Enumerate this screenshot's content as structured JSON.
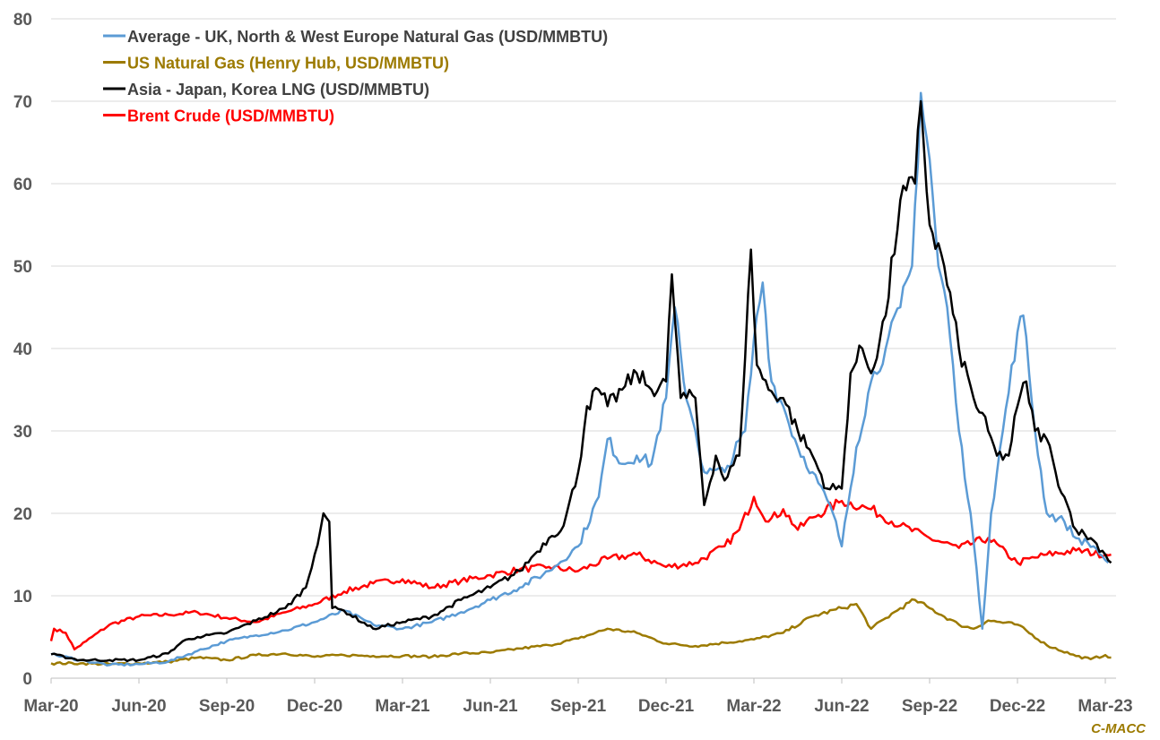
{
  "chart_data": {
    "type": "line",
    "title": "",
    "xlabel": "",
    "ylabel": "",
    "ylim": [
      0,
      80
    ],
    "yticks": [
      "0",
      "10",
      "20",
      "30",
      "40",
      "50",
      "60",
      "70",
      "80"
    ],
    "xtick_labels": [
      "Mar-20",
      "Jun-20",
      "Sep-20",
      "Dec-20",
      "Mar-21",
      "Jun-21",
      "Sep-21",
      "Dec-21",
      "Mar-22",
      "Jun-22",
      "Sep-22",
      "Dec-22",
      "Mar-23"
    ],
    "x_units": "months since Mar-20",
    "xlim": [
      0,
      36
    ],
    "grid": true,
    "legend_placement": "top-left",
    "source_label": "C-MACC",
    "series": [
      {
        "name": "Average - UK, North & West Europe Natural Gas (USD/MMBTU)",
        "color": "#5B9BD5",
        "legend_text_color": "#404040",
        "points": [
          [
            0,
            2.9
          ],
          [
            1,
            2.2
          ],
          [
            2,
            1.6
          ],
          [
            3,
            1.7
          ],
          [
            4,
            2.0
          ],
          [
            5,
            3.3
          ],
          [
            6,
            4.5
          ],
          [
            7,
            5.2
          ],
          [
            8,
            5.8
          ],
          [
            9,
            6.8
          ],
          [
            10,
            8.2
          ],
          [
            11,
            6.5
          ],
          [
            12,
            6.0
          ],
          [
            13,
            6.8
          ],
          [
            14,
            8.0
          ],
          [
            15,
            9.5
          ],
          [
            16,
            11
          ],
          [
            17,
            13
          ],
          [
            18,
            16
          ],
          [
            18.7,
            22
          ],
          [
            19,
            29
          ],
          [
            19.5,
            26
          ],
          [
            20,
            27
          ],
          [
            20.5,
            26
          ],
          [
            21,
            34
          ],
          [
            21.3,
            45
          ],
          [
            21.6,
            36
          ],
          [
            22,
            30
          ],
          [
            22.3,
            25
          ],
          [
            23,
            25
          ],
          [
            23.7,
            30
          ],
          [
            24.1,
            44
          ],
          [
            24.3,
            48
          ],
          [
            24.6,
            36
          ],
          [
            25,
            33
          ],
          [
            25.5,
            28
          ],
          [
            26,
            25
          ],
          [
            26.7,
            20
          ],
          [
            27,
            16
          ],
          [
            27.5,
            28
          ],
          [
            28,
            36
          ],
          [
            28.5,
            40
          ],
          [
            29,
            45
          ],
          [
            29.4,
            50
          ],
          [
            29.7,
            71
          ],
          [
            30,
            63
          ],
          [
            30.3,
            50
          ],
          [
            30.6,
            45
          ],
          [
            31,
            30
          ],
          [
            31.4,
            20
          ],
          [
            31.8,
            6
          ],
          [
            32.1,
            20
          ],
          [
            32.5,
            30
          ],
          [
            33,
            42
          ],
          [
            33.2,
            44
          ],
          [
            33.6,
            30
          ],
          [
            34,
            20
          ],
          [
            34.6,
            19
          ],
          [
            35,
            17
          ],
          [
            35.6,
            16
          ],
          [
            36.1,
            14
          ]
        ]
      },
      {
        "name": "US Natural Gas (Henry Hub, USD/MMBTU)",
        "color": "#9C7A00",
        "legend_text_color": "#9C7A00",
        "points": [
          [
            0,
            1.8
          ],
          [
            1,
            1.8
          ],
          [
            2,
            1.7
          ],
          [
            3,
            1.8
          ],
          [
            4,
            2.0
          ],
          [
            5,
            2.5
          ],
          [
            6,
            2.2
          ],
          [
            7,
            2.8
          ],
          [
            8,
            3.0
          ],
          [
            9,
            2.6
          ],
          [
            10,
            2.8
          ],
          [
            11,
            2.7
          ],
          [
            12,
            2.7
          ],
          [
            13,
            2.6
          ],
          [
            14,
            3.0
          ],
          [
            15,
            3.1
          ],
          [
            16,
            3.6
          ],
          [
            17,
            4.0
          ],
          [
            18,
            4.8
          ],
          [
            19,
            6.0
          ],
          [
            20,
            5.5
          ],
          [
            21,
            4.2
          ],
          [
            22,
            3.9
          ],
          [
            23,
            4.3
          ],
          [
            24,
            4.7
          ],
          [
            25,
            5.5
          ],
          [
            26,
            7.5
          ],
          [
            27,
            8.5
          ],
          [
            27.5,
            9.0
          ],
          [
            28,
            6.0
          ],
          [
            29,
            8.5
          ],
          [
            29.5,
            9.5
          ],
          [
            30,
            8.5
          ],
          [
            31,
            6.5
          ],
          [
            31.5,
            6.0
          ],
          [
            32,
            7.0
          ],
          [
            33,
            6.5
          ],
          [
            34,
            4.0
          ],
          [
            35,
            2.7
          ],
          [
            35.5,
            2.3
          ],
          [
            36,
            2.8
          ],
          [
            36.2,
            2.5
          ]
        ]
      },
      {
        "name": "Asia - Japan, Korea LNG (USD/MMBTU)",
        "color": "#000000",
        "legend_text_color": "#404040",
        "points": [
          [
            0,
            2.9
          ],
          [
            1,
            2.2
          ],
          [
            2,
            2.2
          ],
          [
            3,
            2.2
          ],
          [
            4,
            3.0
          ],
          [
            4.5,
            4.5
          ],
          [
            5,
            5.0
          ],
          [
            6,
            5.5
          ],
          [
            7,
            7.0
          ],
          [
            8,
            8.5
          ],
          [
            8.7,
            11
          ],
          [
            9,
            15
          ],
          [
            9.3,
            20
          ],
          [
            9.5,
            19
          ],
          [
            9.6,
            8.5
          ],
          [
            10,
            8.2
          ],
          [
            11,
            6.0
          ],
          [
            12,
            6.8
          ],
          [
            13,
            7.5
          ],
          [
            14,
            9.5
          ],
          [
            15,
            11
          ],
          [
            16,
            13
          ],
          [
            16.5,
            15
          ],
          [
            17,
            17
          ],
          [
            17.5,
            18.5
          ],
          [
            18,
            25
          ],
          [
            18.3,
            33
          ],
          [
            18.7,
            35
          ],
          [
            19,
            33
          ],
          [
            19.5,
            35
          ],
          [
            20,
            37
          ],
          [
            20.5,
            35
          ],
          [
            21,
            36
          ],
          [
            21.2,
            49
          ],
          [
            21.5,
            34
          ],
          [
            22,
            34
          ],
          [
            22.3,
            21
          ],
          [
            22.7,
            27
          ],
          [
            23,
            24
          ],
          [
            23.5,
            27
          ],
          [
            23.9,
            52
          ],
          [
            24.1,
            38
          ],
          [
            24.5,
            35
          ],
          [
            25,
            34
          ],
          [
            25.5,
            30
          ],
          [
            26,
            27
          ],
          [
            26.5,
            23
          ],
          [
            27,
            23
          ],
          [
            27.3,
            37
          ],
          [
            27.7,
            40
          ],
          [
            28,
            37
          ],
          [
            28.5,
            44
          ],
          [
            29,
            58
          ],
          [
            29.5,
            60
          ],
          [
            29.7,
            70
          ],
          [
            30,
            55
          ],
          [
            30.5,
            50
          ],
          [
            31,
            40
          ],
          [
            31.5,
            34
          ],
          [
            32,
            30
          ],
          [
            32.3,
            27
          ],
          [
            32.7,
            27
          ],
          [
            33,
            33
          ],
          [
            33.3,
            36
          ],
          [
            33.6,
            30
          ],
          [
            34,
            29
          ],
          [
            34.3,
            25
          ],
          [
            34.6,
            22
          ],
          [
            35,
            18
          ],
          [
            35.5,
            17
          ],
          [
            36,
            15
          ],
          [
            36.2,
            14
          ]
        ]
      },
      {
        "name": "Brent Crude (USD/MMBTU)",
        "color": "#FF0000",
        "legend_text_color": "#FF0000",
        "points": [
          [
            0,
            4.5
          ],
          [
            0.1,
            6
          ],
          [
            0.5,
            5.5
          ],
          [
            0.8,
            3.5
          ],
          [
            1.2,
            4.5
          ],
          [
            2,
            6.5
          ],
          [
            3,
            7.5
          ],
          [
            4,
            7.7
          ],
          [
            5,
            8.0
          ],
          [
            6,
            7.3
          ],
          [
            7,
            6.8
          ],
          [
            8,
            8.0
          ],
          [
            9,
            9.0
          ],
          [
            10,
            10.5
          ],
          [
            11,
            11.5
          ],
          [
            12,
            12.0
          ],
          [
            13,
            11.0
          ],
          [
            14,
            11.8
          ],
          [
            15,
            12.5
          ],
          [
            16,
            13.2
          ],
          [
            17,
            13.5
          ],
          [
            18,
            13.0
          ],
          [
            19,
            14.5
          ],
          [
            20,
            15.0
          ],
          [
            21,
            13.5
          ],
          [
            22,
            14.0
          ],
          [
            23,
            16.0
          ],
          [
            23.5,
            18.0
          ],
          [
            24,
            22
          ],
          [
            24.5,
            19
          ],
          [
            25,
            20.5
          ],
          [
            25.5,
            18
          ],
          [
            26,
            19.5
          ],
          [
            27,
            21.5
          ],
          [
            28,
            20.5
          ],
          [
            29,
            18.5
          ],
          [
            30,
            17
          ],
          [
            31,
            15.8
          ],
          [
            32,
            17
          ],
          [
            33,
            14
          ],
          [
            34,
            15
          ],
          [
            35,
            15.5
          ],
          [
            36,
            15
          ],
          [
            36.2,
            15
          ]
        ]
      }
    ]
  }
}
